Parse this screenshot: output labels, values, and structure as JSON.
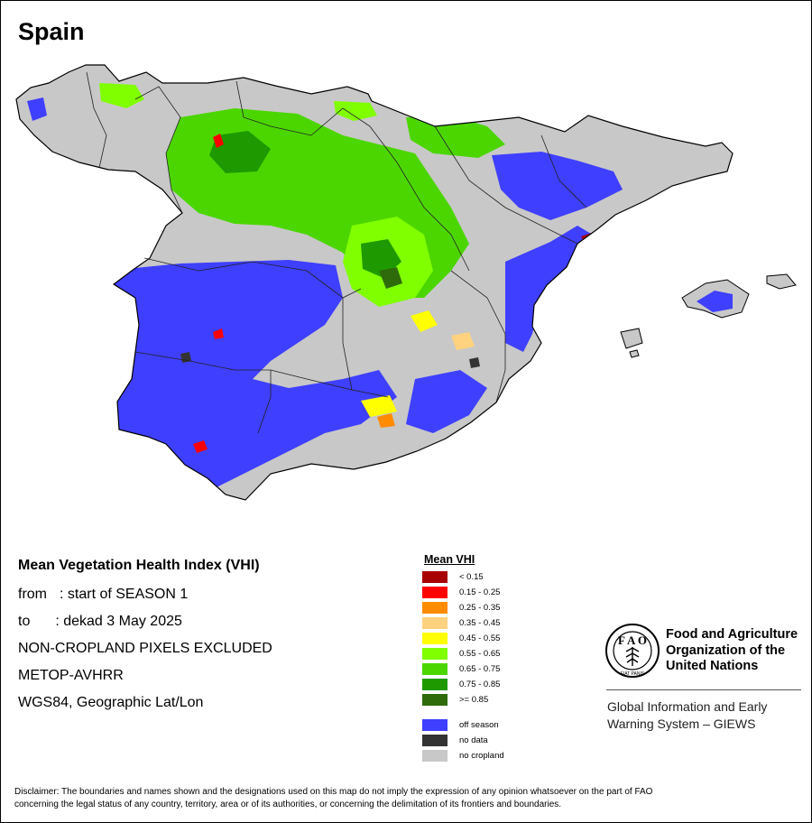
{
  "map_title": "Spain",
  "info": {
    "heading": "Mean Vegetation Health Index (VHI)",
    "from_label": "from",
    "from_value": ": start of SEASON 1",
    "to_label": "to",
    "to_value": ": dekad 3 May 2025",
    "note": "NON-CROPLAND PIXELS EXCLUDED",
    "sensor": "METOP-AVHRR",
    "projection": "WGS84, Geographic Lat/Lon"
  },
  "legend": {
    "title": "Mean VHI",
    "items": [
      {
        "label": "< 0.15",
        "color": "#a80000"
      },
      {
        "label": "0.15 - 0.25",
        "color": "#ff0000"
      },
      {
        "label": "0.25 - 0.35",
        "color": "#ff8c00"
      },
      {
        "label": "0.35 - 0.45",
        "color": "#ffd27f"
      },
      {
        "label": "0.45 - 0.55",
        "color": "#ffff00"
      },
      {
        "label": "0.55 - 0.65",
        "color": "#7fff00"
      },
      {
        "label": "0.65 - 0.75",
        "color": "#4cd600"
      },
      {
        "label": "0.75 - 0.85",
        "color": "#1e9a00"
      },
      {
        "label": ">= 0.85",
        "color": "#2f6b0a"
      }
    ],
    "extra_items": [
      {
        "label": "off season",
        "color": "#3f3fff"
      },
      {
        "label": "no data",
        "color": "#333333"
      },
      {
        "label": "no cropland",
        "color": "#c8c8c8"
      }
    ]
  },
  "organization": {
    "line1": "Food and Agriculture",
    "line2": "Organization of the",
    "line3": "United Nations",
    "logo_icon": "fao-logo-icon",
    "logo_text": "FIAT PANIS"
  },
  "giews": {
    "line1": "Global Information and Early",
    "line2": "Warning System – GIEWS"
  },
  "disclaimer": {
    "line1": "Disclaimer: The boundaries and names shown and the designations used on this map do not imply the expression of any opinion whatsoever on the part of FAO",
    "line2": "concerning the legal status of any country, territory, area or of its authorities, or concerning the delimitation of its frontiers and boundaries."
  }
}
